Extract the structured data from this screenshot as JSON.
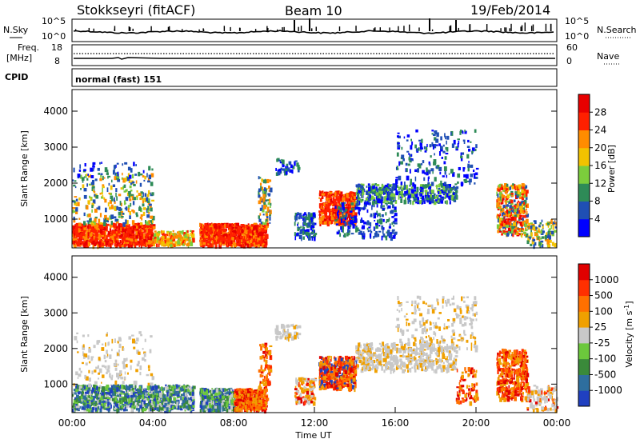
{
  "header": {
    "radar": "Stokkseyri (fitACF)",
    "beam": "Beam 10",
    "date": "19/Feb/2014"
  },
  "noise_panel": {
    "left_label": "N.Sky",
    "right_label": "N.Search",
    "left_ticks": [
      "10^5",
      "10^0"
    ],
    "right_ticks": [
      "10^5",
      "10^0"
    ]
  },
  "freq_panel": {
    "left_label_line1": "Freq.",
    "left_label_line2": "[MHz]",
    "right_label": "Nave",
    "left_ticks": [
      "18",
      "8"
    ],
    "right_ticks": [
      "60",
      "0"
    ]
  },
  "cpid_panel": {
    "label": "CPID",
    "text": "normal (fast) 151"
  },
  "chart_data": [
    {
      "type": "heatmap",
      "name": "power",
      "ylabel": "Slant Range [km]",
      "y_ticks": [
        "4000",
        "3000",
        "2000",
        "1000"
      ],
      "ylim": [
        200,
        4600
      ],
      "colorbar": {
        "label": "Power [dB]",
        "ticks": [
          "28",
          "24",
          "20",
          "16",
          "12",
          "8",
          "4"
        ],
        "colors": [
          "#0000ff",
          "#1f4fb4",
          "#2e8b57",
          "#7ccd3c",
          "#f2c200",
          "#ff8c00",
          "#ff2000",
          "#e80000"
        ]
      }
    },
    {
      "type": "heatmap",
      "name": "velocity",
      "ylabel": "Slant Range [km]",
      "y_ticks": [
        "4000",
        "3000",
        "2000",
        "1000"
      ],
      "ylim": [
        200,
        4600
      ],
      "xlabel": "Time UT",
      "x_ticks": [
        "00:00",
        "04:00",
        "08:00",
        "12:00",
        "16:00",
        "20:00",
        "00:00"
      ],
      "colorbar": {
        "label_main": "Velocity",
        "label_unit": "[m s",
        "label_exp": "-1",
        "label_close": "]",
        "ticks": [
          "1000",
          "500",
          "100",
          "25",
          "-25",
          "-100",
          "-500",
          "-1000"
        ],
        "colors": [
          "#2040c0",
          "#2e6e9e",
          "#3a8a3a",
          "#6cc83c",
          "#c8c8c8",
          "#f0a000",
          "#ff7000",
          "#ff3000",
          "#e00000"
        ]
      }
    }
  ]
}
